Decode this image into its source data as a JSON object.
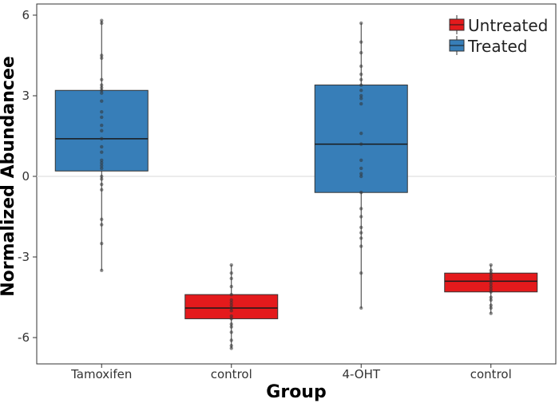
{
  "colors": {
    "Untreated": "#e41a1c",
    "Treated": "#377eb8",
    "point": "#333333",
    "axis": "#333333"
  },
  "chart_data": {
    "type": "box",
    "title": "",
    "xlabel": "Group",
    "ylabel": "Normalized Abundancee",
    "ylim": [
      -7,
      6.5
    ],
    "yticks": [
      6,
      3,
      0,
      -3,
      -6
    ],
    "ytick_labels": [
      "6",
      "3",
      "0",
      "-3",
      "-6"
    ],
    "categories": [
      "Tamoxifen",
      "control",
      "4-OHT",
      "control"
    ],
    "legend": {
      "position": "top-right",
      "entries": [
        "Untreated",
        "Treated"
      ]
    },
    "hline": 0,
    "boxes": [
      {
        "category": "Tamoxifen",
        "group": "Treated",
        "whisker_low": -3.5,
        "q1": 0.2,
        "median": 1.4,
        "q3": 3.2,
        "whisker_high": 5.8,
        "points": [
          5.8,
          5.7,
          4.5,
          4.4,
          3.6,
          3.4,
          3.3,
          3.2,
          3.1,
          2.8,
          2.4,
          2.2,
          1.9,
          1.7,
          1.4,
          1.1,
          0.9,
          0.6,
          0.5,
          0.4,
          0.3,
          0.0,
          -0.1,
          -0.3,
          -0.5,
          -1.6,
          -1.8,
          -2.5,
          -3.5
        ]
      },
      {
        "category": "control",
        "group": "Untreated",
        "whisker_low": -6.4,
        "q1": -5.3,
        "median": -4.9,
        "q3": -4.4,
        "whisker_high": -3.3,
        "points": [
          -3.3,
          -3.6,
          -3.8,
          -4.1,
          -4.4,
          -4.6,
          -4.7,
          -4.8,
          -4.9,
          -5.0,
          -5.2,
          -5.3,
          -5.5,
          -5.6,
          -5.8,
          -6.1,
          -6.3,
          -6.4
        ]
      },
      {
        "category": "4-OHT",
        "group": "Treated",
        "whisker_low": -4.9,
        "q1": -0.6,
        "median": 1.2,
        "q3": 3.4,
        "whisker_high": 5.7,
        "points": [
          5.7,
          5.0,
          4.6,
          4.1,
          3.8,
          3.6,
          3.4,
          3.2,
          3.0,
          2.9,
          2.7,
          1.6,
          1.2,
          0.6,
          0.3,
          0.1,
          0.0,
          -0.6,
          -1.2,
          -1.5,
          -1.9,
          -2.1,
          -2.3,
          -2.6,
          -3.6,
          -4.9
        ]
      },
      {
        "category": "control",
        "group": "Untreated",
        "whisker_low": -5.1,
        "q1": -4.3,
        "median": -3.9,
        "q3": -3.6,
        "whisker_high": -3.3,
        "points": [
          -3.3,
          -3.5,
          -3.6,
          -3.7,
          -3.8,
          -3.9,
          -4.0,
          -4.1,
          -4.2,
          -4.3,
          -4.5,
          -4.6,
          -4.8,
          -4.9,
          -5.1
        ]
      }
    ]
  }
}
